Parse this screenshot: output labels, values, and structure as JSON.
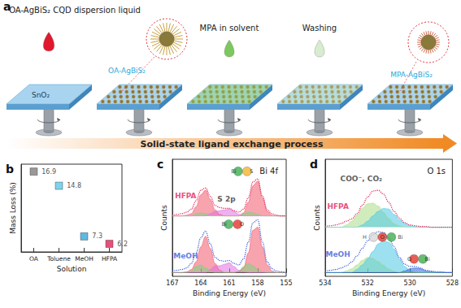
{
  "diagram": {
    "label": "a",
    "dropper_label": "OA-AgBiS₂ CQD dispersion liquid",
    "substrate_label": "SnO₂",
    "film_label": "OA-AgBiS₂",
    "solvent_label": "MPA in solvent",
    "washing_label": "Washing",
    "final_label": "MPA-AgBiS₂",
    "process_label": "Solid-state ligand exchange process"
  },
  "chart_data": [
    {
      "label": "b",
      "type": "scatter",
      "categories": [
        "OA",
        "Toluene",
        "MeOH",
        "HFPA"
      ],
      "values": [
        16.9,
        14.8,
        7.3,
        6.2
      ],
      "colors": [
        "#7f7f7f",
        "#5bc8e8",
        "#3aa6d8",
        "#e0245a"
      ],
      "marker": "square",
      "data_labels": true,
      "xlabel": "Solution",
      "ylabel": "Mass Loss (%)",
      "ylim": [
        5,
        18
      ],
      "tick_labels": "x",
      "grid": false
    },
    {
      "label": "c",
      "type": "line",
      "title": "Bi 4f",
      "xlabel": "Binding Energy (eV)",
      "ylabel": "Counts",
      "x": [
        167,
        166.5,
        166,
        165.5,
        165,
        164.5,
        164,
        163.5,
        163,
        162.5,
        162,
        161.5,
        161,
        160.5,
        160,
        159.5,
        159,
        158.5,
        158,
        157.5,
        157,
        156.5,
        156,
        155.5,
        155
      ],
      "xlim": [
        167,
        155
      ],
      "xticks": [
        167,
        164,
        161,
        158,
        155
      ],
      "ylim": [
        -5,
        150
      ],
      "tick_labels": "x",
      "grid": false,
      "series": [
        {
          "type": "area",
          "color": "#f05a6e",
          "baseline": 75,
          "values": [
            75,
            75,
            75,
            76,
            78,
            87,
            103,
            109,
            97,
            83,
            77,
            75,
            75,
            75,
            75,
            79,
            93,
            115,
            121,
            99,
            81,
            76,
            75,
            75,
            75
          ]
        },
        {
          "type": "area",
          "color": "#e070e0",
          "baseline": 75,
          "values": [
            75,
            75,
            75,
            75,
            75,
            75,
            75,
            75,
            78,
            81,
            82,
            83,
            84,
            81,
            77,
            75,
            75,
            75,
            75,
            75,
            75,
            75,
            75,
            75,
            75
          ]
        },
        {
          "type": "area",
          "color": "#7fd47f",
          "baseline": 75,
          "values": [
            75,
            75,
            75,
            75,
            75,
            78,
            79,
            78,
            75,
            75,
            75,
            75,
            75,
            75,
            75,
            78,
            80,
            79,
            77,
            75,
            75,
            75,
            75,
            75,
            75
          ]
        },
        {
          "type": "line",
          "color": "#e0245a",
          "line_style": "dotted",
          "values": [
            76,
            77,
            78,
            80,
            84,
            95,
            109,
            112,
            101,
            89,
            86,
            85,
            85,
            82,
            80,
            84,
            99,
            120,
            124,
            101,
            83,
            78,
            76,
            75,
            75
          ]
        },
        {
          "type": "area",
          "color": "#f05a6e",
          "baseline": 0,
          "values": [
            0,
            0,
            0,
            1,
            4,
            14,
            34,
            48,
            32,
            12,
            3,
            0,
            0,
            0,
            1,
            6,
            26,
            56,
            60,
            34,
            10,
            2,
            0,
            0,
            0
          ]
        },
        {
          "type": "area",
          "color": "#e070e0",
          "baseline": 0,
          "values": [
            0,
            0,
            0,
            0,
            0,
            0,
            0,
            0,
            4,
            9,
            9,
            11,
            13,
            8,
            3,
            1,
            0,
            0,
            0,
            0,
            0,
            0,
            0,
            0,
            0
          ]
        },
        {
          "type": "area",
          "color": "#7fd47f",
          "baseline": 0,
          "values": [
            0,
            0,
            0,
            0,
            2,
            8,
            10,
            6,
            2,
            0,
            0,
            0,
            0,
            0,
            2,
            8,
            12,
            9,
            4,
            1,
            0,
            0,
            0,
            0,
            0
          ]
        },
        {
          "type": "line",
          "color": "#3a5bd9",
          "line_style": "dotted",
          "values": [
            2,
            3,
            4,
            6,
            12,
            26,
            46,
            55,
            38,
            20,
            16,
            15,
            16,
            12,
            10,
            18,
            40,
            66,
            70,
            40,
            14,
            5,
            2,
            1,
            0
          ]
        }
      ],
      "annotations": [
        {
          "text": "HFPA",
          "x": 165.6,
          "y": 102,
          "color": "#e0245a"
        },
        {
          "text": "MeOH",
          "x": 165.6,
          "y": 22,
          "color": "#3a5bd9"
        },
        {
          "text": "S 2p",
          "x": 161.3,
          "y": 97,
          "color": "#333333"
        }
      ],
      "icons": [
        {
          "labels": [
            "Bi",
            "S"
          ],
          "colors": [
            "#3fae4f",
            "#f3b52f"
          ],
          "x": 159.6,
          "y": 134
        },
        {
          "labels": [
            "Bi",
            "O"
          ],
          "colors": [
            "#3fae4f",
            "#e5352b"
          ],
          "x": 160.6,
          "y": 64
        }
      ]
    },
    {
      "label": "d",
      "type": "line",
      "title": "O 1s",
      "xlabel": "Binding Energy (eV)",
      "ylabel": "Counts",
      "x": [
        534,
        533.75,
        533.5,
        533.25,
        533,
        532.75,
        532.5,
        532.25,
        532,
        531.75,
        531.5,
        531.25,
        531,
        530.75,
        530.5,
        530.25,
        530,
        529.75,
        529.5,
        529.25,
        529,
        528.75,
        528.5,
        528.25,
        528
      ],
      "xlim": [
        534,
        528
      ],
      "xticks": [
        534,
        532,
        530,
        528
      ],
      "ylim": [
        -5,
        150
      ],
      "tick_labels": "x",
      "grid": false,
      "series": [
        {
          "type": "area",
          "color": "#a9dc86",
          "baseline": 60,
          "values": [
            60,
            60,
            60,
            60,
            63,
            68,
            76,
            85,
            91,
            92,
            88,
            80,
            72,
            65,
            62,
            60,
            60,
            60,
            60,
            60,
            60,
            60,
            60,
            60,
            60
          ]
        },
        {
          "type": "area",
          "color": "#4cc8e6",
          "baseline": 60,
          "values": [
            60,
            60,
            60,
            60,
            60,
            60,
            60,
            63,
            68,
            75,
            81,
            85,
            84,
            77,
            70,
            65,
            62,
            61,
            60,
            60,
            60,
            60,
            60,
            60,
            60
          ]
        },
        {
          "type": "line",
          "color": "#e0245a",
          "line_style": "dotted",
          "values": [
            61,
            62,
            63,
            65,
            68,
            71,
            78,
            89,
            100,
            108,
            109,
            104,
            93,
            81,
            72,
            66,
            63,
            62,
            61,
            61,
            60,
            60,
            60,
            60,
            60
          ]
        },
        {
          "type": "area",
          "color": "#a9dc86",
          "baseline": 0,
          "values": [
            0,
            0,
            0,
            0,
            2,
            5,
            10,
            16,
            20,
            19,
            15,
            10,
            5,
            2,
            0,
            0,
            0,
            0,
            0,
            0,
            0,
            0,
            0,
            0,
            0
          ]
        },
        {
          "type": "area",
          "color": "#4cc8e6",
          "baseline": 0,
          "values": [
            0,
            0,
            0,
            0,
            0,
            0,
            4,
            10,
            18,
            28,
            38,
            42,
            40,
            31,
            18,
            8,
            3,
            1,
            0,
            0,
            0,
            0,
            0,
            0,
            0
          ]
        },
        {
          "type": "area",
          "color": "#2f62e0",
          "baseline": 0,
          "values": [
            0,
            0,
            0,
            0,
            0,
            0,
            0,
            0,
            0,
            0,
            0,
            0,
            0,
            0,
            0,
            2,
            5,
            6,
            5,
            2,
            1,
            0,
            0,
            0,
            0
          ]
        },
        {
          "type": "line",
          "color": "#3a5bd9",
          "line_style": "dotted",
          "values": [
            2,
            3,
            4,
            6,
            9,
            14,
            22,
            32,
            42,
            50,
            54,
            53,
            46,
            34,
            20,
            11,
            8,
            8,
            6,
            3,
            2,
            1,
            1,
            0,
            0
          ]
        }
      ],
      "annotations": [
        {
          "text": "HFPA",
          "x": 533.4,
          "y": 88,
          "color": "#e0245a"
        },
        {
          "text": "MeOH",
          "x": 533.4,
          "y": 24,
          "color": "#3a5bd9"
        },
        {
          "text": "COO⁻, CO₂",
          "x": 532.3,
          "y": 124,
          "color": "#333333"
        }
      ],
      "icons": [
        {
          "labels": [
            "H",
            "O",
            "Bi"
          ],
          "colors": [
            "#d9d9d9",
            "#e5352b",
            "#3fae4f"
          ],
          "x": 531.3,
          "y": 47
        },
        {
          "labels": [
            "O",
            "Bi"
          ],
          "colors": [
            "#e5352b",
            "#3fae4f"
          ],
          "x": 529.6,
          "y": 18
        }
      ]
    }
  ]
}
